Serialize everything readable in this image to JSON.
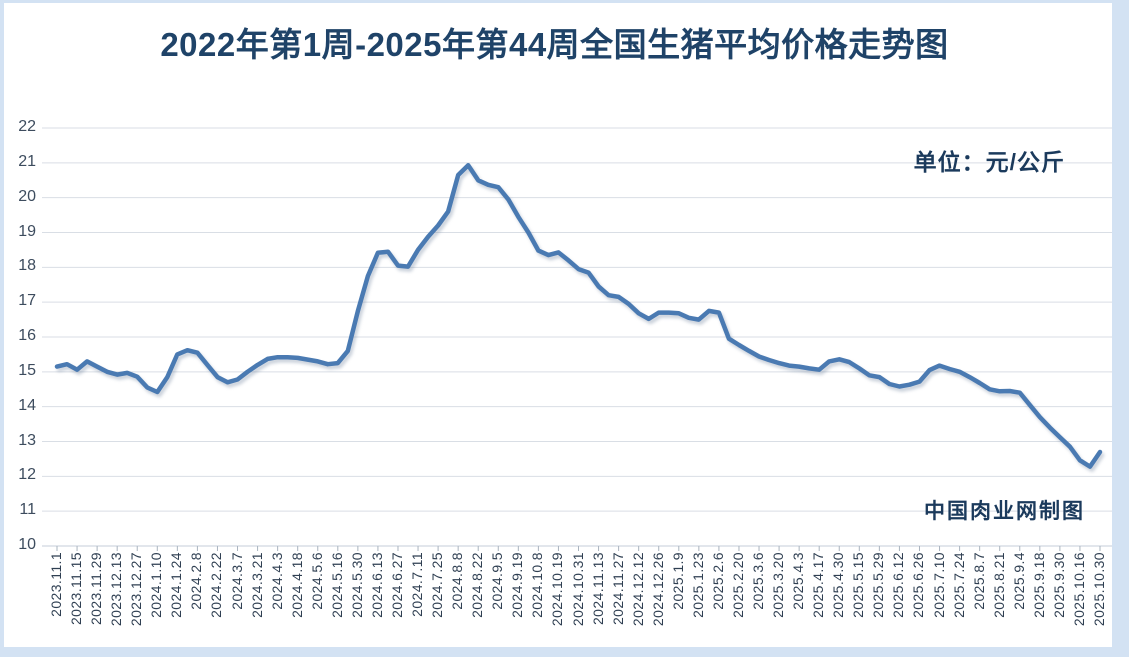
{
  "page": {
    "title": "2022年第1周-2025年第44周全国生猪平均价格走势图",
    "unit_label": "单位：元/公斤",
    "watermark": "中国肉业网制图"
  },
  "colors": {
    "title_text": "#1f4368",
    "axis_text": "#3d4c5e",
    "line": "#4a7ab2",
    "gridline": "#d9dee5",
    "axis_line": "#c6ced8",
    "tick": "#aab4bf",
    "frame": "#d3e2f3"
  },
  "chart_data": {
    "type": "line",
    "title": "2022年第1周-2025年第44周全国生猪平均价格走势图",
    "unit_label": "单位：元/公斤",
    "watermark": "中国肉业网制图",
    "xlabel": "",
    "ylabel": "元/公斤",
    "ylim": [
      10,
      22
    ],
    "y_ticks": [
      22,
      21,
      20,
      19,
      18,
      17,
      16,
      15,
      14,
      13,
      12,
      11,
      10
    ],
    "grid": "horizontal",
    "legend": "none",
    "x_tick_labels": [
      "2023.11.1",
      "2023.11.15",
      "2023.11.29",
      "2023.12.13",
      "2023.12.27",
      "2024.1.10",
      "2024.1.24",
      "2024.2.8",
      "2024.2.22",
      "2024.3.7",
      "2024.3.21",
      "2024.4.3",
      "2024.4.18",
      "2024.5.6",
      "2024.5.16",
      "2024.5.30",
      "2024.6.13",
      "2024.6.27",
      "2024.7.11",
      "2024.7.25",
      "2024.8.8",
      "2024.8.22",
      "2024.9.5",
      "2024.9.19",
      "2024.10.8",
      "2024.10.19",
      "2024.10.31",
      "2024.11.13",
      "2024.11.27",
      "2024.12.12",
      "2024.12.26",
      "2025.1.9",
      "2025.1.23",
      "2025.2.6",
      "2025.2.20",
      "2025.3.6",
      "2025.3.20",
      "2025.4.3",
      "2025.4.17",
      "2025.4.30",
      "2025.5.15",
      "2025.5.29",
      "2025.6.12",
      "2025.6.26",
      "2025.7.10",
      "2025.7.24",
      "2025.8.7",
      "2025.8.21",
      "2025.9.4",
      "2025.9.18",
      "2025.9.30",
      "2025.10.16",
      "2025.10.30"
    ],
    "series": [
      {
        "name": "全国生猪平均价格",
        "points_per_label_interval": 2,
        "values": [
          15.15,
          15.22,
          15.06,
          15.3,
          15.15,
          15.0,
          14.92,
          14.97,
          14.86,
          14.55,
          14.42,
          14.85,
          15.5,
          15.62,
          15.55,
          15.2,
          14.85,
          14.7,
          14.78,
          15.0,
          15.2,
          15.37,
          15.42,
          15.42,
          15.4,
          15.35,
          15.3,
          15.22,
          15.25,
          15.6,
          16.75,
          17.75,
          18.42,
          18.45,
          18.05,
          18.02,
          18.5,
          18.88,
          19.2,
          19.6,
          20.65,
          20.93,
          20.5,
          20.37,
          20.3,
          19.95,
          19.45,
          19.0,
          18.48,
          18.35,
          18.43,
          18.2,
          17.95,
          17.85,
          17.45,
          17.2,
          17.15,
          16.95,
          16.68,
          16.52,
          16.7,
          16.7,
          16.68,
          16.55,
          16.5,
          16.75,
          16.7,
          15.95,
          15.77,
          15.6,
          15.44,
          15.34,
          15.25,
          15.18,
          15.15,
          15.1,
          15.06,
          15.3,
          15.36,
          15.28,
          15.1,
          14.9,
          14.85,
          14.65,
          14.58,
          14.63,
          14.72,
          15.05,
          15.18,
          15.08,
          15.0,
          14.85,
          14.68,
          14.5,
          14.44,
          14.45,
          14.4,
          14.05,
          13.7,
          13.4,
          13.12,
          12.85,
          12.46,
          12.28,
          12.7
        ]
      }
    ]
  }
}
